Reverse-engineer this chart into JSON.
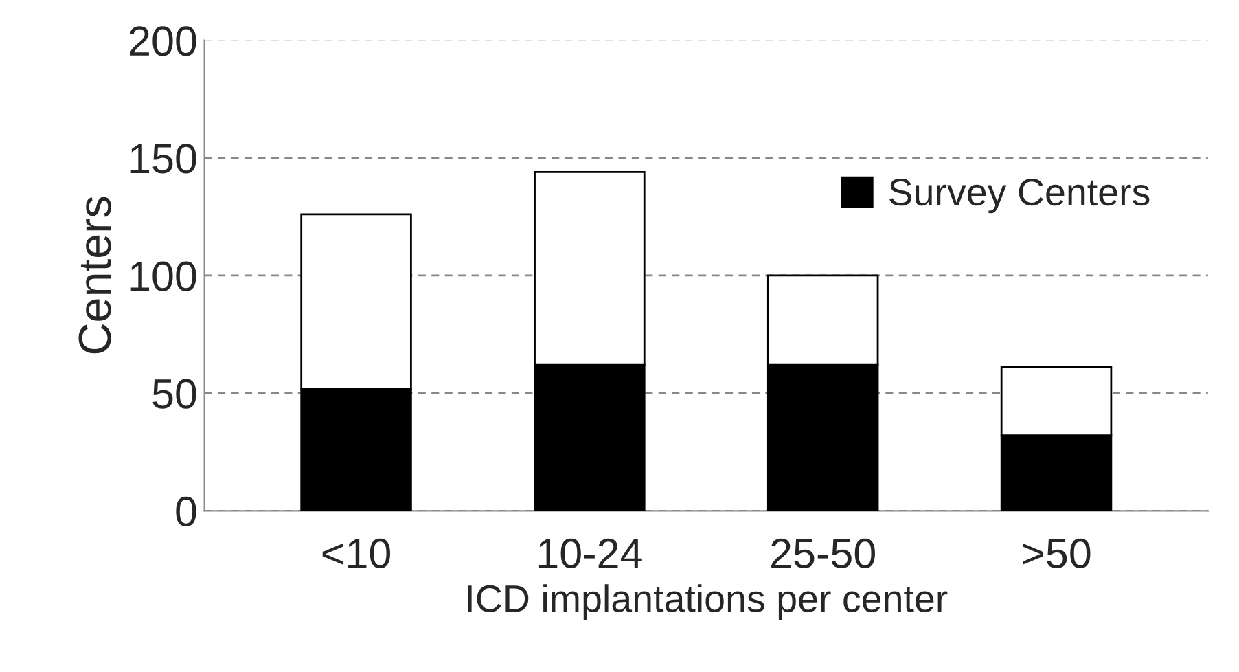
{
  "chart_data": {
    "type": "bar",
    "stacked": true,
    "xlabel": "ICD implantations per center",
    "ylabel": "Centers",
    "categories": [
      "<10",
      "10-24",
      "25-50",
      ">50"
    ],
    "series": [
      {
        "name": "Survey Centers",
        "color": "#000000",
        "values": [
          52,
          62,
          62,
          32
        ]
      },
      {
        "color": "#ffffff",
        "values": [
          74,
          82,
          38,
          29
        ]
      }
    ],
    "ylim": [
      0,
      200
    ],
    "yticks": [
      0,
      50,
      100,
      150,
      200
    ],
    "grid": "y",
    "legend": "top right"
  }
}
